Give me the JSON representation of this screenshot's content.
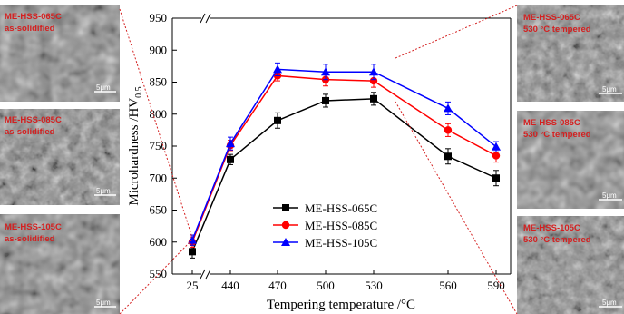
{
  "chart_data": {
    "type": "line",
    "xlabel": "Tempering temperature /°C",
    "ylabel": "Microhardness /HV",
    "ylabel_sub": "0.5",
    "categories": [
      "25",
      "440",
      "470",
      "500",
      "530",
      "560",
      "590"
    ],
    "ylim": [
      550,
      950
    ],
    "yticks": [
      "550",
      "600",
      "650",
      "700",
      "750",
      "800",
      "850",
      "900",
      "950"
    ],
    "grid": false,
    "legend_position": "lower-center",
    "series": [
      {
        "name": "ME-HSS-065C",
        "color": "#000000",
        "marker": "square",
        "values": [
          585,
          729,
          790,
          821,
          824,
          734,
          700
        ],
        "errors": [
          10,
          8,
          12,
          10,
          10,
          12,
          12
        ]
      },
      {
        "name": "ME-HSS-085C",
        "color": "#ff0000",
        "marker": "circle",
        "values": [
          600,
          751,
          860,
          854,
          852,
          775,
          735
        ],
        "errors": [
          8,
          8,
          8,
          10,
          10,
          10,
          10
        ]
      },
      {
        "name": "ME-HSS-105C",
        "color": "#0000ff",
        "marker": "triangle",
        "values": [
          603,
          754,
          870,
          866,
          866,
          809,
          749
        ],
        "errors": [
          8,
          10,
          10,
          12,
          12,
          10,
          8
        ]
      }
    ]
  },
  "micrographs_left": [
    {
      "line1": "ME-HSS-065C",
      "line2": "as-solidified",
      "scale": "5μm"
    },
    {
      "line1": "ME-HSS-085C",
      "line2": "as-solidified",
      "scale": "5μm"
    },
    {
      "line1": "ME-HSS-105C",
      "line2": "as-solidified",
      "scale": "5μm"
    }
  ],
  "micrographs_right": [
    {
      "line1": "ME-HSS-065C",
      "line2": "530 °C tempered",
      "scale": "5μm"
    },
    {
      "line1": "ME-HSS-085C",
      "line2": "530 °C tempered",
      "scale": "5μm"
    },
    {
      "line1": "ME-HSS-105C",
      "line2": "530 °C tempered",
      "scale": "5μm"
    }
  ],
  "colors": {
    "connector": "#d42020"
  }
}
